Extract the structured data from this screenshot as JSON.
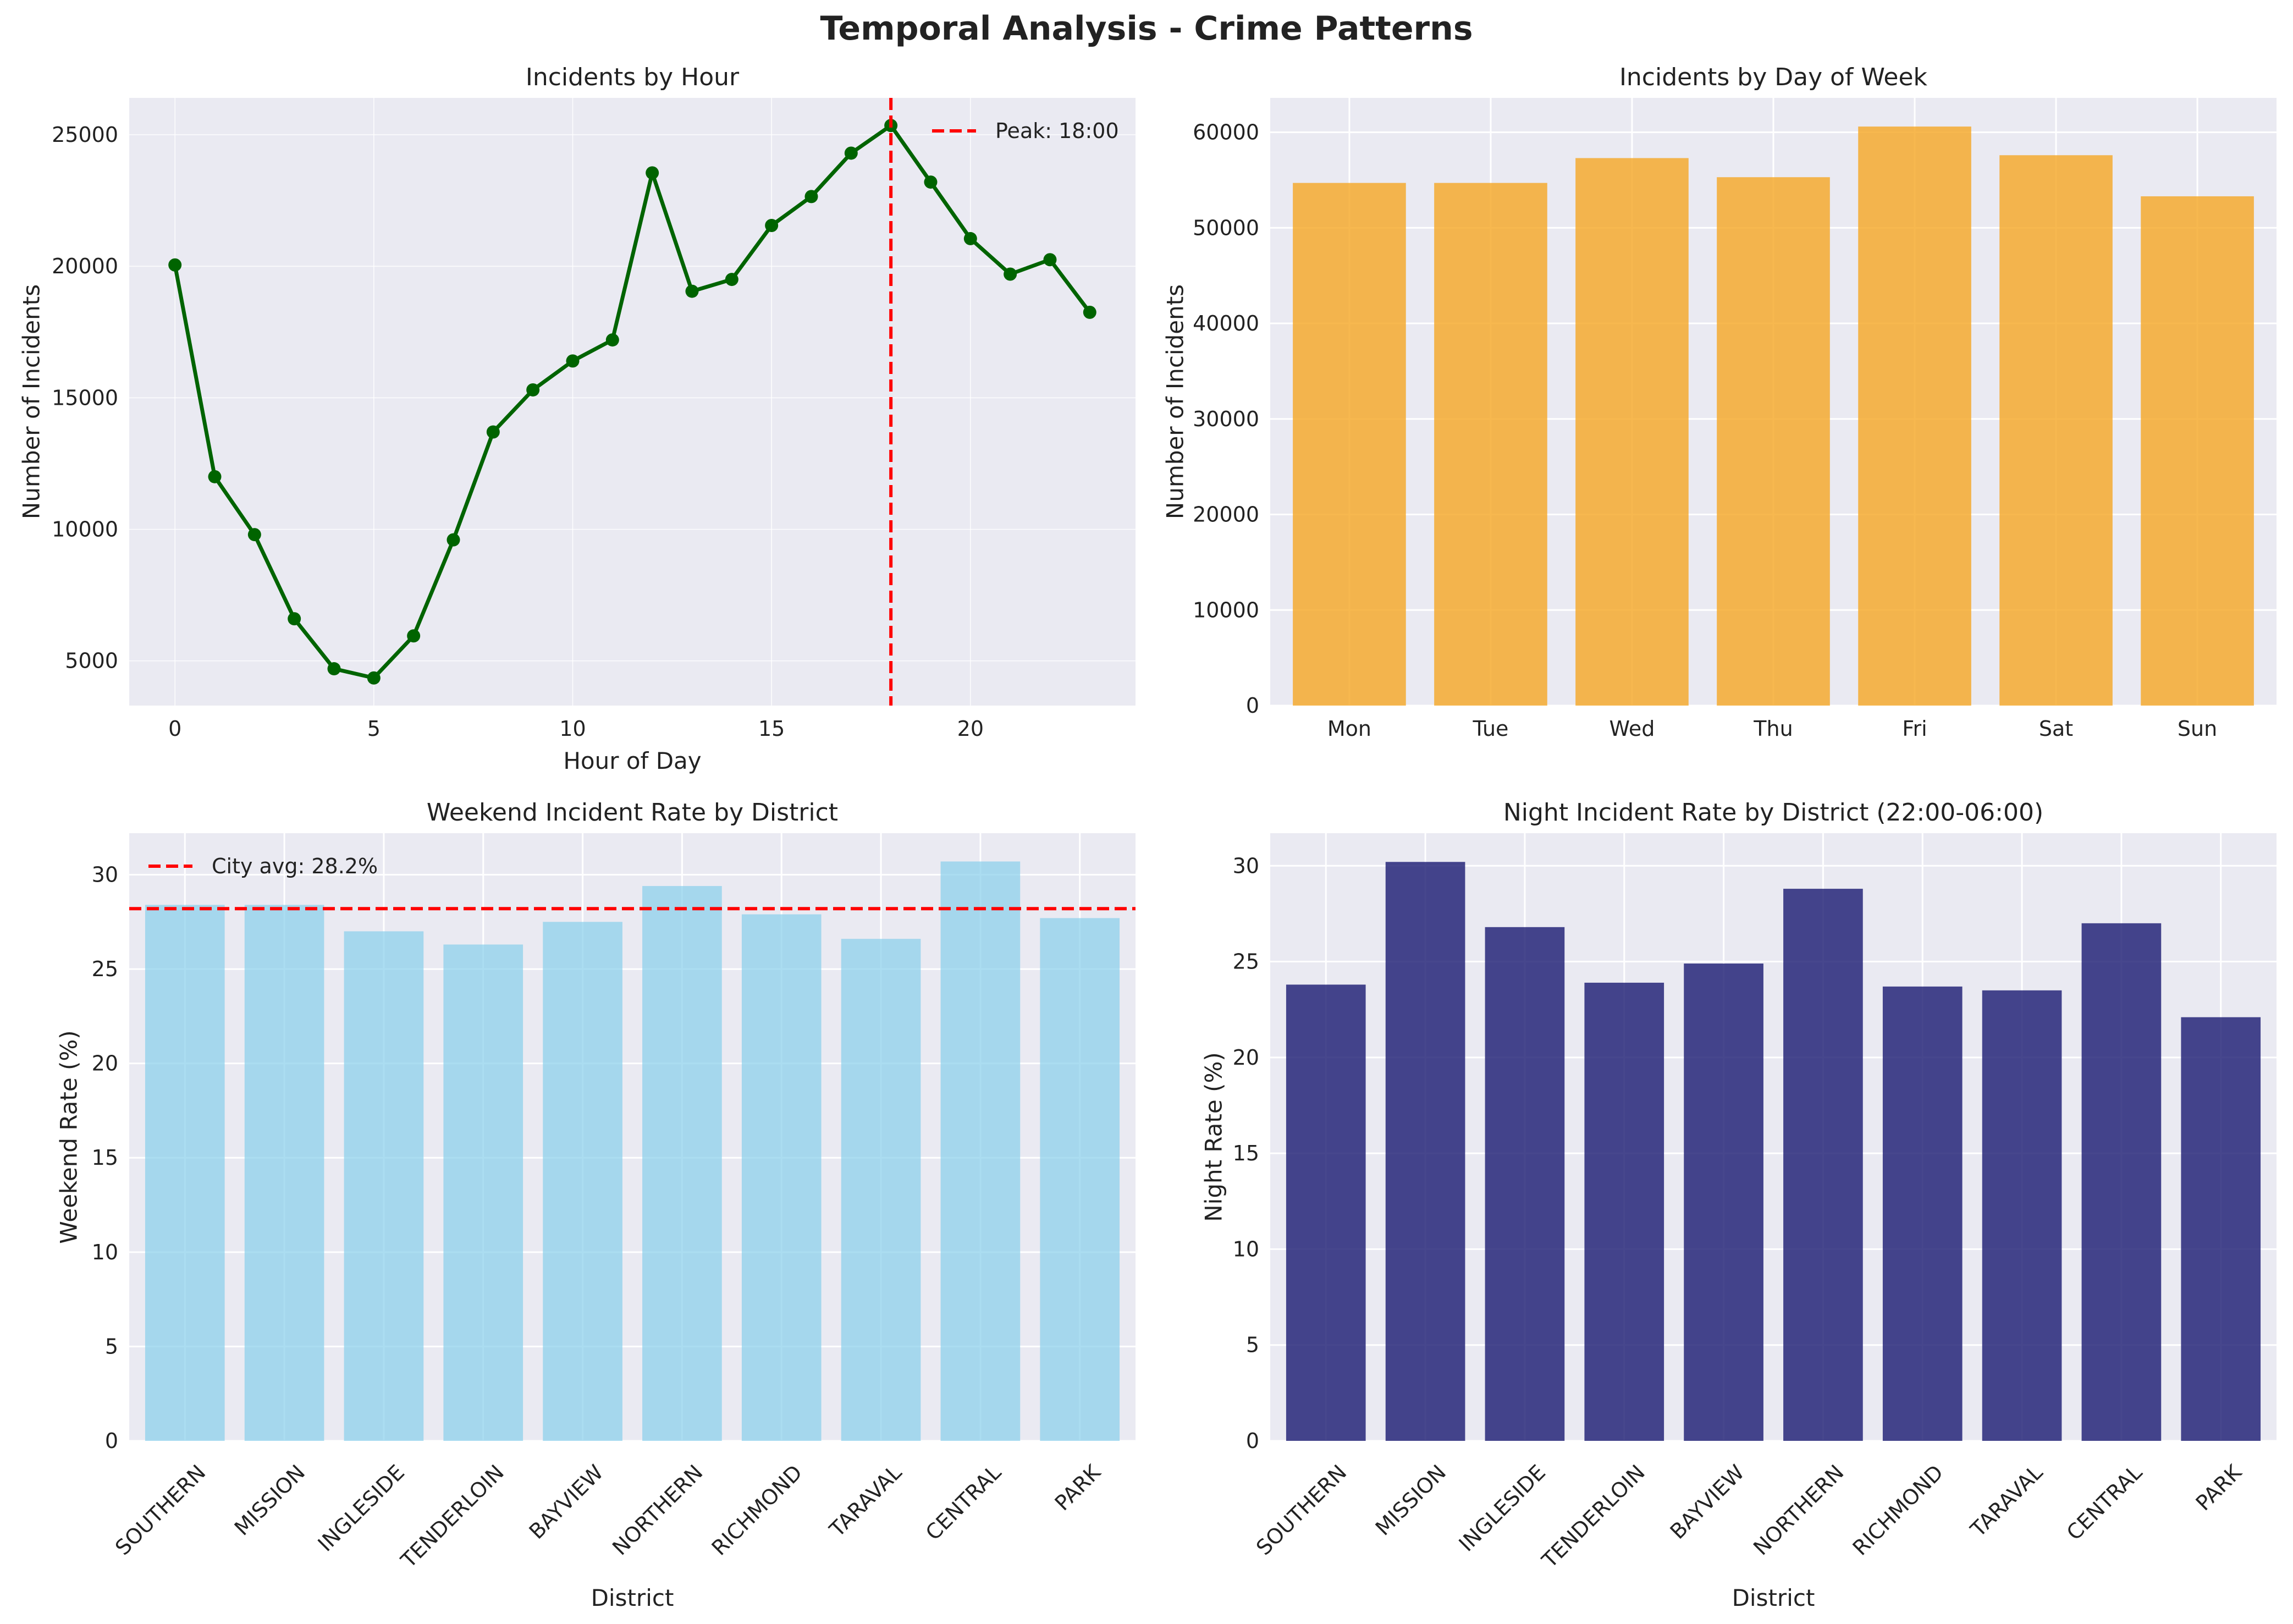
{
  "figure": {
    "suptitle": "Temporal Analysis - Crime Patterns",
    "colors": {
      "plot_bg": "#eaeaf2",
      "grid": "#ffffff",
      "line": "#006400",
      "dow_bar": "#f5a623",
      "weekend_bar": "#87ceeb",
      "night_bar": "#191970",
      "reference": "#ff0000"
    }
  },
  "chart_data": [
    {
      "id": "hour",
      "type": "line",
      "title": "Incidents by Hour",
      "xlabel": "Hour of Day",
      "ylabel": "Number of Incidents",
      "x": [
        0,
        1,
        2,
        3,
        4,
        5,
        6,
        7,
        8,
        9,
        10,
        11,
        12,
        13,
        14,
        15,
        16,
        17,
        18,
        19,
        20,
        21,
        22,
        23
      ],
      "values": [
        20050,
        12000,
        9800,
        6600,
        4700,
        4350,
        5950,
        9600,
        13700,
        15300,
        16400,
        17200,
        23550,
        19050,
        19500,
        21550,
        22650,
        24300,
        25350,
        23200,
        21050,
        19700,
        20250,
        18250
      ],
      "xlim": [
        -1.15,
        24.15
      ],
      "ylim": [
        3300,
        26400
      ],
      "xticks": [
        0,
        5,
        10,
        15,
        20
      ],
      "yticks": [
        5000,
        10000,
        15000,
        20000,
        25000
      ],
      "reference": {
        "orientation": "vertical",
        "value": 18,
        "label": "Peak: 18:00"
      },
      "legend": "top-right",
      "grid": true
    },
    {
      "id": "dow",
      "type": "bar",
      "title": "Incidents by Day of Week",
      "xlabel": "",
      "ylabel": "Number of Incidents",
      "categories": [
        "Mon",
        "Tue",
        "Wed",
        "Thu",
        "Fri",
        "Sat",
        "Sun"
      ],
      "values": [
        54700,
        54700,
        57300,
        55300,
        60600,
        57600,
        53300
      ],
      "ylim": [
        0,
        63600
      ],
      "yticks": [
        0,
        10000,
        20000,
        30000,
        40000,
        50000,
        60000
      ],
      "grid": true
    },
    {
      "id": "weekend",
      "type": "bar",
      "title": "Weekend Incident Rate by District",
      "xlabel": "District",
      "ylabel": "Weekend Rate (%)",
      "categories": [
        "SOUTHERN",
        "MISSION",
        "INGLESIDE",
        "TENDERLOIN",
        "BAYVIEW",
        "NORTHERN",
        "RICHMOND",
        "TARAVAL",
        "CENTRAL",
        "PARK"
      ],
      "values": [
        28.4,
        28.4,
        27.0,
        26.3,
        27.5,
        29.4,
        27.9,
        26.6,
        30.7,
        27.7
      ],
      "ylim": [
        0,
        32.2
      ],
      "yticks": [
        0,
        5,
        10,
        15,
        20,
        25,
        30
      ],
      "reference": {
        "orientation": "horizontal",
        "value": 28.2,
        "label": "City avg: 28.2%"
      },
      "legend": "top-left",
      "grid": true
    },
    {
      "id": "night",
      "type": "bar",
      "title": "Night Incident Rate by District (22:00-06:00)",
      "xlabel": "District",
      "ylabel": "Night Rate (%)",
      "categories": [
        "SOUTHERN",
        "MISSION",
        "INGLESIDE",
        "TENDERLOIN",
        "BAYVIEW",
        "NORTHERN",
        "RICHMOND",
        "TARAVAL",
        "CENTRAL",
        "PARK"
      ],
      "values": [
        23.8,
        30.2,
        26.8,
        23.9,
        24.9,
        28.8,
        23.7,
        23.5,
        27.0,
        22.1
      ],
      "ylim": [
        0,
        31.7
      ],
      "yticks": [
        0,
        5,
        10,
        15,
        20,
        25,
        30
      ],
      "grid": true
    }
  ]
}
